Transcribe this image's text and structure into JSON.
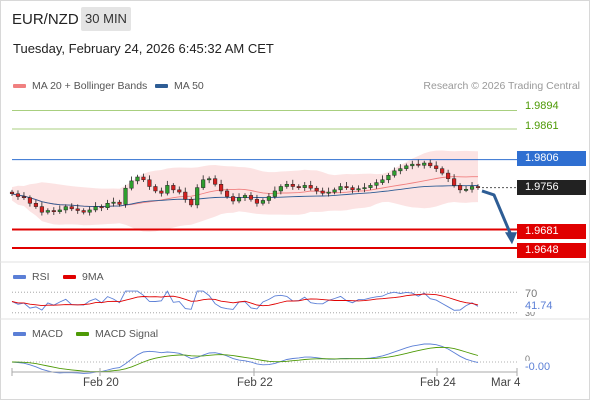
{
  "header": {
    "symbol": "EUR/NZD",
    "timeframe": "30 MIN",
    "datetime": "Tuesday, February 24, 2026 6:45:32 AM CET"
  },
  "legend": [
    {
      "label": "MA 20 + Bollinger Bands",
      "color": "#f08080"
    },
    {
      "label": "MA 50",
      "color": "#2e5d95"
    }
  ],
  "copyright": "Research © 2026 Trading Central",
  "colors": {
    "resistance": "#6aa329",
    "pivot": "#2f6fd1",
    "support": "#e00000",
    "price": "#222222",
    "up_candle": "#2e9e2e",
    "down_candle": "#d62020",
    "forecast_arrow": "#2e5d95"
  },
  "chart_data": [
    {
      "type": "candlestick",
      "title": "",
      "x_ticks": [
        "Feb 20",
        "Feb 22",
        "Feb 24",
        "Mar 4"
      ],
      "levels": [
        {
          "value": 1.9894,
          "kind": "resistance"
        },
        {
          "value": 1.9861,
          "kind": "resistance"
        },
        {
          "value": 1.9806,
          "kind": "pivot"
        },
        {
          "value": 1.9756,
          "kind": "last_price"
        },
        {
          "value": 1.9681,
          "kind": "support"
        },
        {
          "value": 1.9648,
          "kind": "support"
        }
      ],
      "ylim": [
        1.963,
        1.992
      ],
      "forecast": {
        "direction": "down",
        "from": 1.975,
        "to": 1.966
      },
      "close_series": [
        1.9745,
        1.974,
        1.9738,
        1.9728,
        1.9722,
        1.9712,
        1.9715,
        1.9713,
        1.9716,
        1.9722,
        1.9718,
        1.9715,
        1.9712,
        1.9716,
        1.9722,
        1.972,
        1.9728,
        1.973,
        1.9726,
        1.9755,
        1.9768,
        1.9775,
        1.977,
        1.9758,
        1.975,
        1.9746,
        1.976,
        1.9752,
        1.9748,
        1.9735,
        1.9725,
        1.9756,
        1.977,
        1.9772,
        1.9762,
        1.975,
        1.974,
        1.9732,
        1.9738,
        1.9742,
        1.9735,
        1.9728,
        1.9733,
        1.974,
        1.975,
        1.9758,
        1.9762,
        1.9758,
        1.9756,
        1.976,
        1.9755,
        1.975,
        1.9746,
        1.9748,
        1.9752,
        1.9758,
        1.9756,
        1.9752,
        1.9754,
        1.9756,
        1.976,
        1.9765,
        1.977,
        1.9778,
        1.9786,
        1.979,
        1.9795,
        1.9798,
        1.9796,
        1.98,
        1.9795,
        1.979,
        1.9782,
        1.9772,
        1.976,
        1.9752,
        1.9753,
        1.9758,
        1.9756
      ]
    },
    {
      "type": "line",
      "title": "",
      "series": [
        {
          "name": "RSI",
          "color": "#5b7fd6"
        },
        {
          "name": "9MA",
          "color": "#e00000"
        }
      ],
      "reference_levels": [
        70,
        30
      ],
      "last_value": "41.74"
    },
    {
      "type": "line",
      "title": "",
      "series": [
        {
          "name": "MACD",
          "color": "#5b7fd6"
        },
        {
          "name": "MACD Signal",
          "color": "#4e9a06"
        }
      ],
      "reference_levels": [
        0
      ],
      "last_value": "-0.00"
    }
  ],
  "rsi": {
    "label": "RSI",
    "ma_label": "9MA",
    "level_70": "70",
    "level_30": "30",
    "value": "41.74"
  },
  "macd": {
    "label": "MACD",
    "signal_label": "MACD Signal",
    "level_0": "0",
    "value": "-0.00"
  }
}
